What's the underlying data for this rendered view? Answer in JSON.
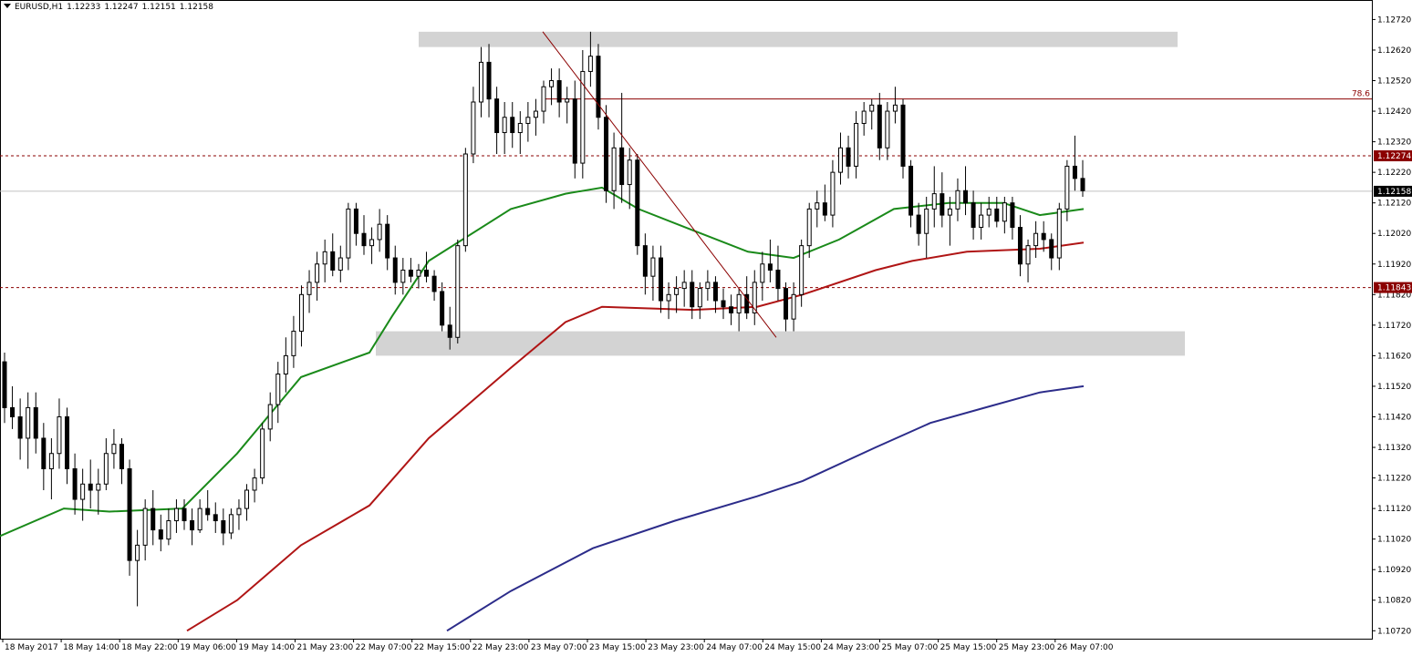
{
  "header": {
    "symbol": "EURUSD,H1",
    "open": "1.12233",
    "high": "1.12247",
    "low": "1.12151",
    "close": "1.12158"
  },
  "price_axis": {
    "ticks": [
      "1.12720",
      "1.12620",
      "1.12520",
      "1.12420",
      "1.12320",
      "1.12220",
      "1.12120",
      "1.12020",
      "1.11920",
      "1.11820",
      "1.11720",
      "1.11620",
      "1.11520",
      "1.11420",
      "1.11320",
      "1.11220",
      "1.11120",
      "1.11020",
      "1.10920",
      "1.10820",
      "1.10720"
    ],
    "current_price_label": "1.12158",
    "level_labels": [
      "1.12274",
      "1.11843"
    ]
  },
  "time_axis": {
    "ticks": [
      "18 May 2017",
      "18 May 14:00",
      "18 May 22:00",
      "19 May 06:00",
      "19 May 14:00",
      "21 May 23:00",
      "22 May 07:00",
      "22 May 15:00",
      "22 May 23:00",
      "23 May 07:00",
      "23 May 15:00",
      "23 May 23:00",
      "24 May 07:00",
      "24 May 15:00",
      "24 May 23:00",
      "25 May 07:00",
      "25 May 15:00",
      "25 May 23:00",
      "26 May 07:00"
    ]
  },
  "fib_label": "78.6",
  "colors": {
    "background": "#ffffff",
    "bull_candle": "#ffffff",
    "bear_candle": "#000000",
    "ma_fast": "#1a8a1a",
    "ma_mid": "#b01515",
    "ma_slow": "#2c2c8a",
    "zone": "#d3d3d3",
    "level_line": "#8b0000",
    "label_bg": "#8b0000",
    "current_label_bg": "#000000"
  },
  "chart_data": {
    "type": "candlestick",
    "symbol": "EURUSD",
    "timeframe": "H1",
    "ylim": [
      1.107,
      1.1276
    ],
    "horizontal_levels": [
      1.12274,
      1.11843
    ],
    "current_price": 1.12158,
    "fib_level": {
      "label": "78.6",
      "price": 1.1246
    },
    "supply_zone": [
      1.1263,
      1.1268
    ],
    "demand_zone": [
      1.1162,
      1.117
    ],
    "trendline": {
      "from_price": 1.1268,
      "to_price": 1.1168
    },
    "candles_ohlc": [
      [
        1.116,
        1.1163,
        1.114,
        1.1145
      ],
      [
        1.1145,
        1.1152,
        1.1138,
        1.1142
      ],
      [
        1.1142,
        1.1148,
        1.1128,
        1.1135
      ],
      [
        1.1135,
        1.115,
        1.1125,
        1.1145
      ],
      [
        1.1145,
        1.115,
        1.113,
        1.1135
      ],
      [
        1.1135,
        1.114,
        1.1118,
        1.1125
      ],
      [
        1.1125,
        1.1135,
        1.1115,
        1.113
      ],
      [
        1.113,
        1.1148,
        1.1125,
        1.1142
      ],
      [
        1.1142,
        1.1145,
        1.112,
        1.1125
      ],
      [
        1.1125,
        1.113,
        1.111,
        1.1115
      ],
      [
        1.1115,
        1.1125,
        1.1108,
        1.112
      ],
      [
        1.112,
        1.1128,
        1.1112,
        1.1118
      ],
      [
        1.1118,
        1.1125,
        1.111,
        1.112
      ],
      [
        1.112,
        1.1135,
        1.1118,
        1.113
      ],
      [
        1.113,
        1.1138,
        1.1125,
        1.1133
      ],
      [
        1.1133,
        1.1135,
        1.112,
        1.1125
      ],
      [
        1.1125,
        1.1128,
        1.109,
        1.1095
      ],
      [
        1.1095,
        1.1105,
        1.108,
        1.11
      ],
      [
        1.11,
        1.1115,
        1.1095,
        1.1112
      ],
      [
        1.1112,
        1.1118,
        1.11,
        1.1105
      ],
      [
        1.1105,
        1.111,
        1.1098,
        1.1102
      ],
      [
        1.1102,
        1.1112,
        1.11,
        1.1108
      ],
      [
        1.1108,
        1.1115,
        1.1104,
        1.1112
      ],
      [
        1.1112,
        1.1115,
        1.1105,
        1.1108
      ],
      [
        1.1108,
        1.1112,
        1.11,
        1.1105
      ],
      [
        1.1105,
        1.1115,
        1.1104,
        1.1112
      ],
      [
        1.1112,
        1.1118,
        1.1108,
        1.111
      ],
      [
        1.111,
        1.1114,
        1.1104,
        1.1108
      ],
      [
        1.1108,
        1.1112,
        1.11,
        1.1104
      ],
      [
        1.1104,
        1.1112,
        1.1102,
        1.111
      ],
      [
        1.111,
        1.1115,
        1.1105,
        1.1112
      ],
      [
        1.1112,
        1.112,
        1.1108,
        1.1118
      ],
      [
        1.1118,
        1.1125,
        1.1114,
        1.1122
      ],
      [
        1.1122,
        1.114,
        1.112,
        1.1138
      ],
      [
        1.1138,
        1.115,
        1.1134,
        1.1146
      ],
      [
        1.1146,
        1.116,
        1.114,
        1.1156
      ],
      [
        1.1156,
        1.1168,
        1.115,
        1.1162
      ],
      [
        1.1162,
        1.1175,
        1.1158,
        1.117
      ],
      [
        1.117,
        1.1185,
        1.1165,
        1.1182
      ],
      [
        1.1182,
        1.119,
        1.1176,
        1.1186
      ],
      [
        1.1186,
        1.1196,
        1.118,
        1.1192
      ],
      [
        1.1192,
        1.12,
        1.1186,
        1.1196
      ],
      [
        1.1196,
        1.1202,
        1.1188,
        1.119
      ],
      [
        1.119,
        1.1198,
        1.1186,
        1.1194
      ],
      [
        1.1194,
        1.1212,
        1.119,
        1.121
      ],
      [
        1.121,
        1.1212,
        1.1198,
        1.1202
      ],
      [
        1.1202,
        1.1208,
        1.1195,
        1.1198
      ],
      [
        1.1198,
        1.1204,
        1.1192,
        1.12
      ],
      [
        1.12,
        1.121,
        1.1196,
        1.1205
      ],
      [
        1.1205,
        1.1208,
        1.119,
        1.1194
      ],
      [
        1.1194,
        1.1198,
        1.1182,
        1.1186
      ],
      [
        1.1186,
        1.1194,
        1.1182,
        1.119
      ],
      [
        1.119,
        1.1194,
        1.1186,
        1.1188
      ],
      [
        1.1188,
        1.1192,
        1.1184,
        1.119
      ],
      [
        1.119,
        1.1196,
        1.1186,
        1.1188
      ],
      [
        1.1188,
        1.119,
        1.118,
        1.1183
      ],
      [
        1.1183,
        1.1186,
        1.117,
        1.1172
      ],
      [
        1.1172,
        1.1178,
        1.1164,
        1.1168
      ],
      [
        1.1168,
        1.12,
        1.1166,
        1.1198
      ],
      [
        1.1198,
        1.123,
        1.1196,
        1.1228
      ],
      [
        1.1228,
        1.125,
        1.1225,
        1.1245
      ],
      [
        1.1245,
        1.1263,
        1.124,
        1.1258
      ],
      [
        1.1258,
        1.1264,
        1.124,
        1.1246
      ],
      [
        1.1246,
        1.125,
        1.1228,
        1.1235
      ],
      [
        1.1235,
        1.1245,
        1.1228,
        1.124
      ],
      [
        1.124,
        1.1245,
        1.123,
        1.1235
      ],
      [
        1.1235,
        1.1242,
        1.1228,
        1.1238
      ],
      [
        1.1238,
        1.1245,
        1.1232,
        1.124
      ],
      [
        1.124,
        1.1246,
        1.1234,
        1.1242
      ],
      [
        1.1242,
        1.1252,
        1.1238,
        1.125
      ],
      [
        1.125,
        1.1256,
        1.1244,
        1.1252
      ],
      [
        1.1252,
        1.1256,
        1.124,
        1.1245
      ],
      [
        1.1245,
        1.125,
        1.1238,
        1.1246
      ],
      [
        1.1246,
        1.1252,
        1.122,
        1.1225
      ],
      [
        1.1225,
        1.1262,
        1.122,
        1.1255
      ],
      [
        1.1255,
        1.1268,
        1.125,
        1.126
      ],
      [
        1.126,
        1.1264,
        1.1236,
        1.124
      ],
      [
        1.124,
        1.1244,
        1.1212,
        1.1216
      ],
      [
        1.1216,
        1.1235,
        1.121,
        1.123
      ],
      [
        1.123,
        1.1248,
        1.1212,
        1.1218
      ],
      [
        1.1218,
        1.123,
        1.121,
        1.1226
      ],
      [
        1.1226,
        1.1228,
        1.1195,
        1.1198
      ],
      [
        1.1198,
        1.1202,
        1.1182,
        1.1188
      ],
      [
        1.1188,
        1.1198,
        1.118,
        1.1194
      ],
      [
        1.1194,
        1.1198,
        1.1176,
        1.118
      ],
      [
        1.118,
        1.1186,
        1.1174,
        1.1182
      ],
      [
        1.1182,
        1.1188,
        1.1176,
        1.1184
      ],
      [
        1.1184,
        1.119,
        1.1178,
        1.1186
      ],
      [
        1.1186,
        1.119,
        1.1174,
        1.1178
      ],
      [
        1.1178,
        1.1186,
        1.1174,
        1.1184
      ],
      [
        1.1184,
        1.119,
        1.118,
        1.1186
      ],
      [
        1.1186,
        1.1188,
        1.1176,
        1.118
      ],
      [
        1.118,
        1.1184,
        1.1174,
        1.1178
      ],
      [
        1.1178,
        1.1182,
        1.1172,
        1.1176
      ],
      [
        1.1176,
        1.1184,
        1.117,
        1.1182
      ],
      [
        1.1182,
        1.1188,
        1.1174,
        1.1176
      ],
      [
        1.1176,
        1.119,
        1.1172,
        1.1186
      ],
      [
        1.1186,
        1.1196,
        1.118,
        1.1192
      ],
      [
        1.1192,
        1.12,
        1.1186,
        1.119
      ],
      [
        1.119,
        1.1198,
        1.118,
        1.1184
      ],
      [
        1.1184,
        1.1186,
        1.117,
        1.1174
      ],
      [
        1.1174,
        1.1186,
        1.117,
        1.1182
      ],
      [
        1.1182,
        1.12,
        1.1178,
        1.1198
      ],
      [
        1.1198,
        1.1212,
        1.1194,
        1.121
      ],
      [
        1.121,
        1.1216,
        1.1204,
        1.1212
      ],
      [
        1.1212,
        1.1218,
        1.1206,
        1.1208
      ],
      [
        1.1208,
        1.1226,
        1.1204,
        1.1222
      ],
      [
        1.1222,
        1.1235,
        1.1218,
        1.123
      ],
      [
        1.123,
        1.1234,
        1.122,
        1.1224
      ],
      [
        1.1224,
        1.1242,
        1.122,
        1.1238
      ],
      [
        1.1238,
        1.1245,
        1.1234,
        1.1242
      ],
      [
        1.1242,
        1.1246,
        1.1236,
        1.1244
      ],
      [
        1.1244,
        1.1248,
        1.1226,
        1.123
      ],
      [
        1.123,
        1.1245,
        1.1226,
        1.1242
      ],
      [
        1.1242,
        1.125,
        1.1238,
        1.1244
      ],
      [
        1.1244,
        1.1246,
        1.122,
        1.1224
      ],
      [
        1.1224,
        1.1226,
        1.1204,
        1.1208
      ],
      [
        1.1208,
        1.1212,
        1.1198,
        1.1202
      ],
      [
        1.1202,
        1.1214,
        1.1194,
        1.121
      ],
      [
        1.121,
        1.1224,
        1.1204,
        1.1215
      ],
      [
        1.1215,
        1.1222,
        1.1204,
        1.1208
      ],
      [
        1.1208,
        1.1214,
        1.1198,
        1.121
      ],
      [
        1.121,
        1.122,
        1.1206,
        1.1216
      ],
      [
        1.1216,
        1.1224,
        1.1208,
        1.1212
      ],
      [
        1.1212,
        1.1216,
        1.12,
        1.1204
      ],
      [
        1.1204,
        1.1212,
        1.12,
        1.1208
      ],
      [
        1.1208,
        1.1214,
        1.1204,
        1.121
      ],
      [
        1.121,
        1.1214,
        1.1204,
        1.1206
      ],
      [
        1.1206,
        1.1214,
        1.1202,
        1.1212
      ],
      [
        1.1212,
        1.1214,
        1.12,
        1.1204
      ],
      [
        1.1204,
        1.1208,
        1.1188,
        1.1192
      ],
      [
        1.1192,
        1.12,
        1.1186,
        1.1198
      ],
      [
        1.1198,
        1.1206,
        1.1194,
        1.1202
      ],
      [
        1.1202,
        1.1206,
        1.1196,
        1.12
      ],
      [
        1.12,
        1.1202,
        1.119,
        1.1194
      ],
      [
        1.1194,
        1.1212,
        1.119,
        1.121
      ],
      [
        1.121,
        1.1226,
        1.1206,
        1.1224
      ],
      [
        1.1224,
        1.1234,
        1.1216,
        1.122
      ],
      [
        1.122,
        1.1226,
        1.1214,
        1.1216
      ]
    ],
    "ma_fast": [
      [
        0,
        1.1103
      ],
      [
        70,
        1.1112
      ],
      [
        120,
        1.1111
      ],
      [
        200,
        1.1112
      ],
      [
        260,
        1.113
      ],
      [
        330,
        1.1155
      ],
      [
        405,
        1.1163
      ],
      [
        430,
        1.1175
      ],
      [
        470,
        1.1193
      ],
      [
        560,
        1.121
      ],
      [
        620,
        1.1215
      ],
      [
        660,
        1.1217
      ],
      [
        700,
        1.121
      ],
      [
        760,
        1.1203
      ],
      [
        820,
        1.1196
      ],
      [
        870,
        1.1194
      ],
      [
        920,
        1.12
      ],
      [
        980,
        1.121
      ],
      [
        1040,
        1.1212
      ],
      [
        1100,
        1.1212
      ],
      [
        1140,
        1.1208
      ],
      [
        1188,
        1.121
      ]
    ],
    "ma_mid": [
      [
        205,
        1.1072
      ],
      [
        260,
        1.1082
      ],
      [
        330,
        1.11
      ],
      [
        405,
        1.1113
      ],
      [
        470,
        1.1135
      ],
      [
        560,
        1.1158
      ],
      [
        620,
        1.1173
      ],
      [
        660,
        1.1178
      ],
      [
        760,
        1.1177
      ],
      [
        830,
        1.1178
      ],
      [
        880,
        1.1182
      ],
      [
        960,
        1.119
      ],
      [
        1000,
        1.1193
      ],
      [
        1060,
        1.1196
      ],
      [
        1140,
        1.1197
      ],
      [
        1188,
        1.1199
      ]
    ],
    "ma_slow": [
      [
        490,
        1.1072
      ],
      [
        560,
        1.1085
      ],
      [
        650,
        1.1099
      ],
      [
        740,
        1.1108
      ],
      [
        830,
        1.1116
      ],
      [
        880,
        1.1121
      ],
      [
        960,
        1.1132
      ],
      [
        1020,
        1.114
      ],
      [
        1080,
        1.1145
      ],
      [
        1140,
        1.115
      ],
      [
        1188,
        1.1152
      ]
    ]
  }
}
